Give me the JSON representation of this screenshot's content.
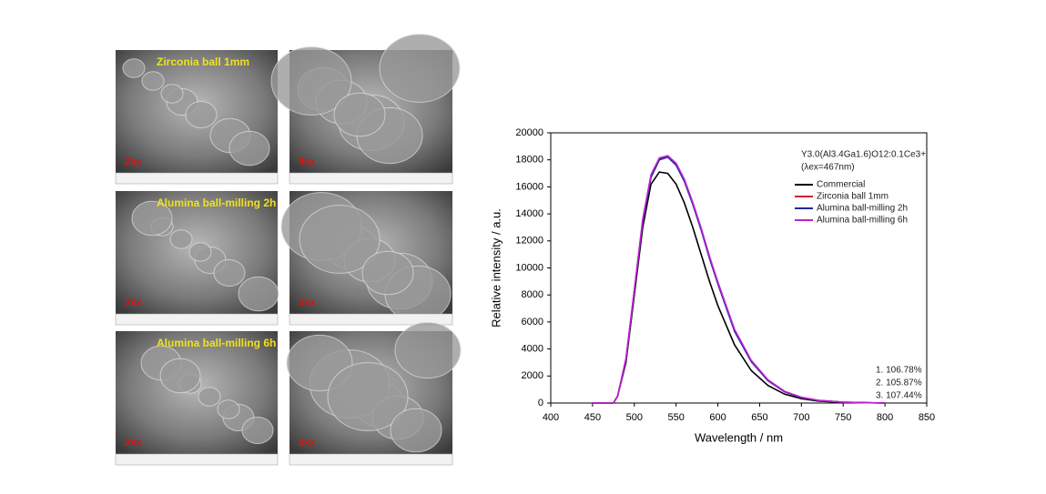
{
  "panels": [
    {
      "caption": "Zirconia ball 1mm",
      "low_mag": "2kx",
      "high_mag": "5kx"
    },
    {
      "caption": "Alumina ball-milling 2h",
      "low_mag": "2kx",
      "high_mag": "5kx"
    },
    {
      "caption": "Alumina ball-milling 6h",
      "low_mag": "2kx",
      "high_mag": "5kx"
    }
  ],
  "chart_data": {
    "type": "line",
    "x_label": "Wavelength / nm",
    "y_label": "Relative intensity / a.u.",
    "x": [
      450,
      470,
      475,
      480,
      490,
      500,
      510,
      520,
      530,
      540,
      550,
      560,
      570,
      580,
      590,
      600,
      620,
      640,
      660,
      680,
      700,
      720,
      750,
      800
    ],
    "series": [
      {
        "name": "Commercial",
        "color": "#000000",
        "values": [
          0,
          0,
          0,
          500,
          3000,
          8000,
          13000,
          16200,
          17100,
          17000,
          16200,
          14800,
          13000,
          11000,
          9000,
          7200,
          4300,
          2400,
          1300,
          650,
          320,
          150,
          50,
          0
        ]
      },
      {
        "name": "Zirconia ball 1mm",
        "color": "#d0202a",
        "values": [
          0,
          0,
          0,
          500,
          3200,
          8300,
          13500,
          16800,
          18100,
          18300,
          17700,
          16500,
          14800,
          12900,
          10800,
          8900,
          5400,
          3100,
          1700,
          850,
          420,
          200,
          60,
          0
        ]
      },
      {
        "name": "Alumina ball-milling 2h",
        "color": "#1f2a9c",
        "values": [
          0,
          0,
          0,
          500,
          3200,
          8300,
          13400,
          16700,
          18000,
          18200,
          17600,
          16400,
          14700,
          12800,
          10700,
          8800,
          5300,
          3050,
          1650,
          820,
          400,
          190,
          60,
          0
        ]
      },
      {
        "name": "Alumina ball-milling 6h",
        "color": "#c020d0",
        "values": [
          0,
          0,
          0,
          520,
          3300,
          8400,
          13600,
          16900,
          18150,
          18300,
          17750,
          16550,
          14850,
          12950,
          10850,
          8950,
          5450,
          3150,
          1720,
          860,
          430,
          205,
          62,
          0
        ]
      }
    ],
    "annotations": [
      "Y3.0(Al3.4Ga1.6)O12:0.1Ce3+",
      "(λex=467nm)",
      "1. 106.78%",
      "2. 105.87%",
      "3. 107.44%"
    ],
    "xlim": [
      400,
      850
    ],
    "xticks": [
      400,
      450,
      500,
      550,
      600,
      650,
      700,
      750,
      800,
      850
    ],
    "ylim": [
      0,
      20000
    ],
    "yticks": [
      0,
      2000,
      4000,
      6000,
      8000,
      10000,
      12000,
      14000,
      16000,
      18000,
      20000
    ],
    "legend": "upper right"
  }
}
